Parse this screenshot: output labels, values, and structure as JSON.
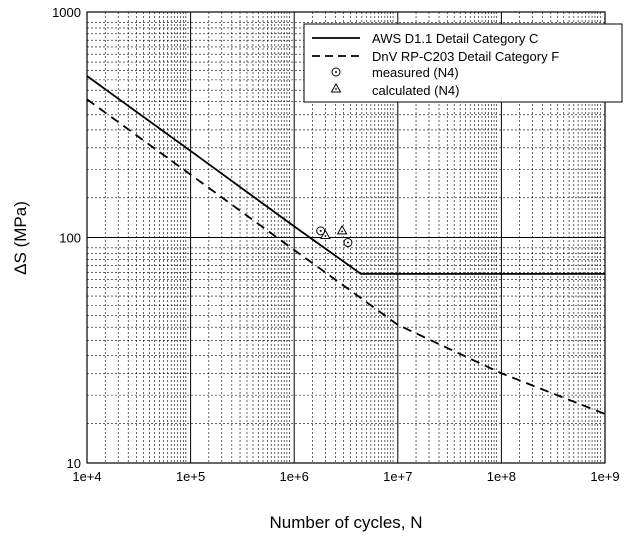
{
  "chart_data": {
    "type": "line",
    "title": "",
    "xlabel": "Number of cycles, N",
    "ylabel": "ΔS (MPa)",
    "x_scale": "log",
    "y_scale": "log",
    "xlim": [
      10000,
      1000000000
    ],
    "ylim": [
      10,
      1000
    ],
    "x_tick_labels": [
      "1e+4",
      "1e+5",
      "1e+6",
      "1e+7",
      "1e+8",
      "1e+9"
    ],
    "x_tick_values": [
      10000,
      100000,
      1000000,
      10000000,
      100000000,
      1000000000
    ],
    "y_tick_labels": [
      "10",
      "100",
      "1000"
    ],
    "y_tick_values": [
      10,
      100,
      1000
    ],
    "grid": true,
    "legend_position": "top-right",
    "series": [
      {
        "name": "AWS D1.1 Detail Category C",
        "style": "solid",
        "x": [
          10000,
          100000,
          1000000,
          4400000,
          1000000000
        ],
        "y": [
          520,
          242,
          112,
          69,
          69
        ]
      },
      {
        "name": "DnV RP-C203 Detail Category F",
        "style": "dashed",
        "x": [
          10000,
          100000,
          1000000,
          2000000,
          10000000,
          100000000,
          1000000000
        ],
        "y": [
          410,
          190,
          88,
          70,
          41,
          25,
          16.5
        ]
      },
      {
        "name": "measured (N4)",
        "style": "marker-circle",
        "x": [
          1800000,
          3300000
        ],
        "y": [
          107,
          95
        ]
      },
      {
        "name": "calculated (N4)",
        "style": "marker-triangle",
        "x": [
          2000000,
          2900000
        ],
        "y": [
          102,
          107
        ]
      }
    ]
  }
}
